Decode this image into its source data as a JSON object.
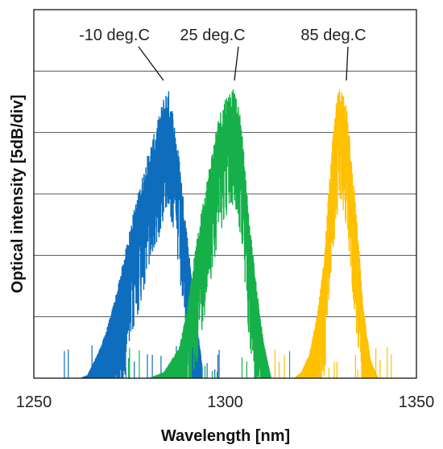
{
  "chart_data": {
    "type": "line",
    "xlabel": "Wavelength [nm]",
    "ylabel": "Optical intensity  [5dB/div]",
    "xlim": [
      1250,
      1350
    ],
    "x_ticks": [
      "1250",
      "1300",
      "1350"
    ],
    "y_divisions": 5,
    "grid": "horizontal",
    "series": [
      {
        "name": "-10 deg.C",
        "color": "#0e6dbd",
        "x": [
          1262,
          1264,
          1266,
          1268,
          1270,
          1272,
          1274,
          1276,
          1278,
          1280,
          1282,
          1284,
          1285,
          1286,
          1288,
          1290,
          1292,
          1294
        ],
        "y": [
          0.0,
          0.05,
          0.3,
          0.6,
          1.0,
          1.5,
          2.1,
          2.7,
          3.2,
          3.7,
          4.1,
          4.6,
          4.75,
          4.5,
          3.6,
          2.4,
          1.2,
          0.2
        ]
      },
      {
        "name": "25 deg.C",
        "color": "#16b04a",
        "x": [
          1280,
          1284,
          1288,
          1290,
          1292,
          1294,
          1296,
          1298,
          1300,
          1302,
          1304,
          1305,
          1306,
          1308,
          1310,
          1312
        ],
        "y": [
          0.0,
          0.1,
          0.5,
          1.1,
          2.0,
          2.8,
          3.5,
          4.2,
          4.6,
          4.75,
          4.3,
          3.6,
          2.8,
          1.6,
          0.6,
          0.0
        ]
      },
      {
        "name": "85 deg.C",
        "color": "#ffc000",
        "x": [
          1318,
          1320,
          1322,
          1324,
          1326,
          1327,
          1328,
          1329,
          1330,
          1331,
          1332,
          1333,
          1334,
          1335,
          1336,
          1338,
          1340
        ],
        "y": [
          0.0,
          0.1,
          0.4,
          1.0,
          2.0,
          3.0,
          3.8,
          4.5,
          4.8,
          4.7,
          4.3,
          3.6,
          2.9,
          2.1,
          1.2,
          0.3,
          0.0
        ]
      }
    ],
    "annotations": [
      {
        "text": "-10 deg.C",
        "series": 0
      },
      {
        "text": "25 deg.C",
        "series": 1
      },
      {
        "text": "85 deg.C",
        "series": 2
      }
    ]
  }
}
